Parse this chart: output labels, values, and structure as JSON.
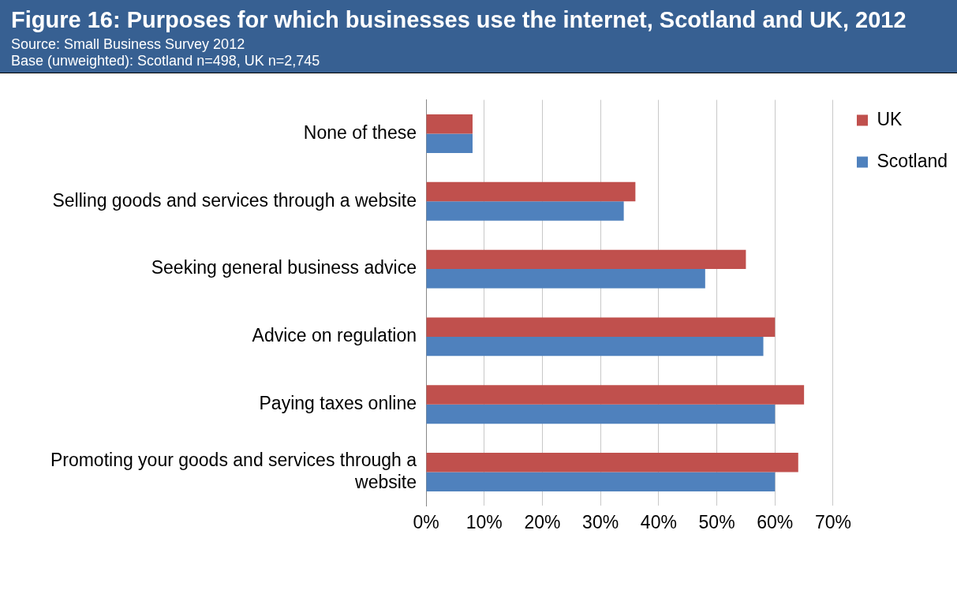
{
  "chart_data": {
    "type": "bar",
    "orientation": "horizontal",
    "title": "Figure 16: Purposes for which businesses use the internet, Scotland and UK, 2012",
    "subtitle": "Source: Small Business Survey 2012",
    "annotations": [
      "Base (unweighted): Scotland n=498, UK n=2,745"
    ],
    "categories": [
      "None of these",
      "Selling goods and services through a website",
      "Seeking general business advice",
      "Advice on regulation",
      "Paying taxes online",
      "Promoting your goods and services through a website"
    ],
    "series": [
      {
        "name": "UK",
        "color": "#c0504d",
        "values": [
          8,
          36,
          55,
          60,
          65,
          64
        ]
      },
      {
        "name": "Scotland",
        "color": "#4f81bd",
        "values": [
          8,
          34,
          48,
          58,
          60,
          60
        ]
      }
    ],
    "xlim": [
      0,
      70
    ],
    "xticks": [
      {
        "value": 0,
        "label": "0%"
      },
      {
        "value": 10,
        "label": "10%"
      },
      {
        "value": 20,
        "label": "20%"
      },
      {
        "value": 30,
        "label": "30%"
      },
      {
        "value": 40,
        "label": "40%"
      },
      {
        "value": 50,
        "label": "50%"
      },
      {
        "value": 60,
        "label": "60%"
      },
      {
        "value": 70,
        "label": "70%"
      }
    ],
    "grid": "x",
    "legend": "top right"
  }
}
